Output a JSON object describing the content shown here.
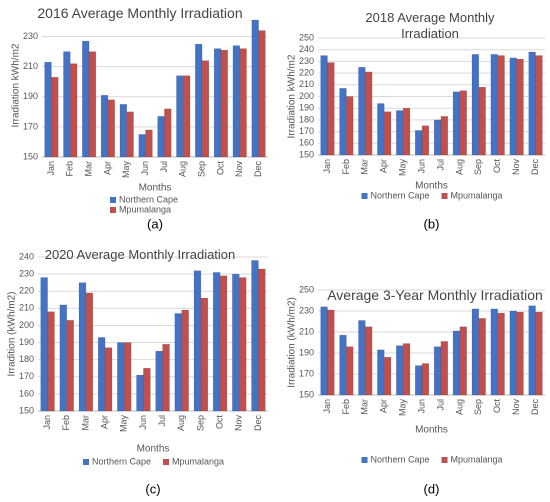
{
  "chart_data": [
    {
      "type": "bar",
      "title": "2016 Average Monthly Irradiation",
      "x_label": "Months",
      "y_label": "Irradiation kWh/m2",
      "caption": "(a)",
      "categories": [
        "Jan",
        "Feb",
        "Mar",
        "Apr",
        "May",
        "Jun",
        "Jul",
        "Aug",
        "Sep",
        "Oct",
        "Nov",
        "Dec"
      ],
      "series": [
        {
          "name": "Northern Cape",
          "color": "#4472c4",
          "values": [
            213,
            220,
            227,
            191,
            185,
            165,
            177,
            204,
            225,
            222,
            224,
            241
          ]
        },
        {
          "name": "Mpumalanga",
          "color": "#c0504d",
          "values": [
            203,
            212,
            220,
            188,
            180,
            168,
            182,
            204,
            214,
            221,
            222,
            234
          ]
        }
      ],
      "ylim": [
        150,
        245
      ],
      "yticks": [
        150,
        170,
        190,
        210,
        230
      ],
      "grid": true,
      "legend_orientation": "vertical"
    },
    {
      "type": "bar",
      "title": "2018 Average Monthly Irradiation",
      "x_label": "Months",
      "y_label": "Irradiation kWh/m2",
      "caption": "(b)",
      "categories": [
        "Jan",
        "Feb",
        "Mar",
        "Apr",
        "May",
        "Jun",
        "Jul",
        "Aug",
        "Sep",
        "Oct",
        "Nov",
        "Dec"
      ],
      "series": [
        {
          "name": "Northern Cape",
          "color": "#4472c4",
          "values": [
            235,
            207,
            225,
            194,
            188,
            171,
            180,
            204,
            236,
            236,
            233,
            238
          ]
        },
        {
          "name": "Mpumalanga",
          "color": "#c0504d",
          "values": [
            229,
            200,
            221,
            187,
            190,
            175,
            183,
            205,
            208,
            235,
            232,
            235
          ]
        }
      ],
      "ylim": [
        150,
        250
      ],
      "yticks": [
        150,
        160,
        170,
        180,
        190,
        200,
        210,
        220,
        230,
        240,
        250
      ],
      "grid": true,
      "legend_orientation": "horizontal"
    },
    {
      "type": "bar",
      "title": "2020 Average Monthly Irradiation",
      "x_label": "Months",
      "y_label": "Irradition (kWh/m2)",
      "caption": "(c)",
      "categories": [
        "Jan",
        "Feb",
        "Mar",
        "Apr",
        "May",
        "Jun",
        "Jul",
        "Aug",
        "Sep",
        "Oct",
        "Nov",
        "Dec"
      ],
      "series": [
        {
          "name": "Northern Cape",
          "color": "#4472c4",
          "values": [
            228,
            212,
            225,
            193,
            190,
            171,
            185,
            207,
            232,
            231,
            230,
            238
          ]
        },
        {
          "name": "Mpumalanga",
          "color": "#c0504d",
          "values": [
            208,
            203,
            219,
            187,
            190,
            175,
            189,
            209,
            216,
            229,
            228,
            233
          ]
        }
      ],
      "ylim": [
        150,
        240
      ],
      "yticks": [
        150,
        160,
        170,
        180,
        190,
        200,
        210,
        220,
        230,
        240
      ],
      "grid": true,
      "legend_orientation": "horizontal"
    },
    {
      "type": "bar",
      "title": "Average 3-Year Monthly Irradiation",
      "x_label": "Months",
      "y_label": "Irradiation (kWh/m2)",
      "caption": "(d)",
      "categories": [
        "Jan",
        "Feb",
        "Mar",
        "Apr",
        "May",
        "Jun",
        "Jul",
        "Aug",
        "Sep",
        "Oct",
        "Nov",
        "Dec"
      ],
      "series": [
        {
          "name": "Northern Cape",
          "color": "#4472c4",
          "values": [
            234,
            207,
            221,
            193,
            197,
            178,
            196,
            211,
            232,
            232,
            230,
            235
          ]
        },
        {
          "name": "Mpumalanga",
          "color": "#c0504d",
          "values": [
            231,
            196,
            215,
            186,
            199,
            180,
            201,
            215,
            223,
            228,
            229,
            229
          ]
        }
      ],
      "ylim": [
        150,
        250
      ],
      "yticks": [
        150,
        170,
        190,
        210,
        230,
        250
      ],
      "grid": true,
      "legend_orientation": "horizontal"
    }
  ]
}
